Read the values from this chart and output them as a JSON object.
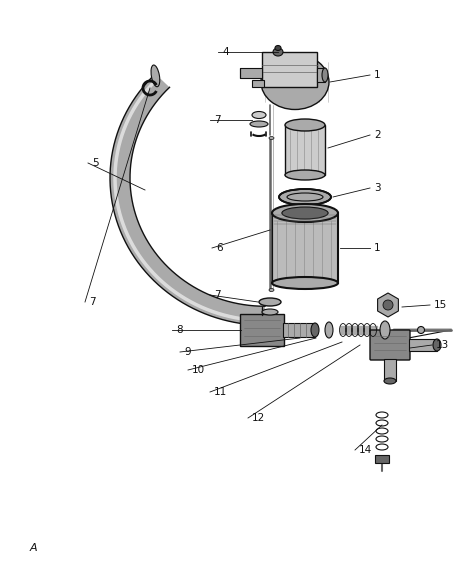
{
  "bg_color": "#ffffff",
  "lc": "#111111",
  "gray1": "#888888",
  "gray2": "#aaaaaa",
  "gray3": "#cccccc",
  "gray4": "#666666",
  "gray5": "#444444",
  "figsize": [
    4.74,
    5.8
  ],
  "dpi": 100,
  "annotation": "A",
  "label_fs": 7.5,
  "lw": 1.0
}
